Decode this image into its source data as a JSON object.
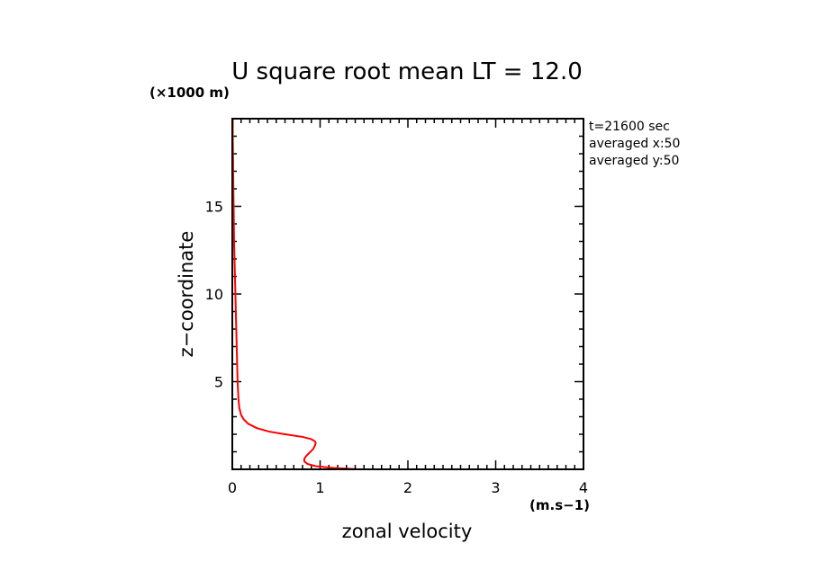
{
  "chart_data": {
    "type": "line",
    "title": "U square root mean LT = 12.0",
    "xlabel": "zonal velocity",
    "x_units": "(m.s−1)",
    "ylabel": "z−coordinate",
    "y_units": "(×1000 m)",
    "xlim": [
      0,
      4
    ],
    "ylim": [
      0,
      20
    ],
    "x_ticks": [
      0,
      1,
      2,
      3,
      4
    ],
    "y_ticks": [
      5,
      10,
      15
    ],
    "grid": false,
    "annotations": [
      "t=21600 sec",
      "averaged  x:50",
      "averaged  y:50"
    ],
    "series": [
      {
        "color": "#ff0000",
        "points": [
          [
            1.44,
            0.0
          ],
          [
            1.15,
            0.08
          ],
          [
            0.95,
            0.18
          ],
          [
            0.86,
            0.3
          ],
          [
            0.82,
            0.45
          ],
          [
            0.82,
            0.6
          ],
          [
            0.84,
            0.75
          ],
          [
            0.88,
            0.95
          ],
          [
            0.92,
            1.15
          ],
          [
            0.94,
            1.35
          ],
          [
            0.95,
            1.5
          ],
          [
            0.94,
            1.6
          ],
          [
            0.9,
            1.72
          ],
          [
            0.8,
            1.85
          ],
          [
            0.6,
            2.0
          ],
          [
            0.42,
            2.15
          ],
          [
            0.28,
            2.35
          ],
          [
            0.18,
            2.6
          ],
          [
            0.13,
            2.85
          ],
          [
            0.1,
            3.1
          ],
          [
            0.08,
            3.5
          ],
          [
            0.07,
            4.0
          ],
          [
            0.06,
            5.0
          ],
          [
            0.055,
            6.0
          ],
          [
            0.05,
            7.0
          ],
          [
            0.045,
            8.0
          ],
          [
            0.04,
            9.0
          ],
          [
            0.035,
            10.0
          ],
          [
            0.03,
            11.0
          ],
          [
            0.025,
            12.0
          ],
          [
            0.02,
            13.0
          ],
          [
            0.018,
            14.0
          ],
          [
            0.015,
            15.0
          ],
          [
            0.012,
            16.0
          ],
          [
            0.01,
            17.0
          ],
          [
            0.008,
            18.0
          ],
          [
            0.005,
            19.0
          ],
          [
            0.005,
            20.0
          ]
        ]
      }
    ]
  }
}
